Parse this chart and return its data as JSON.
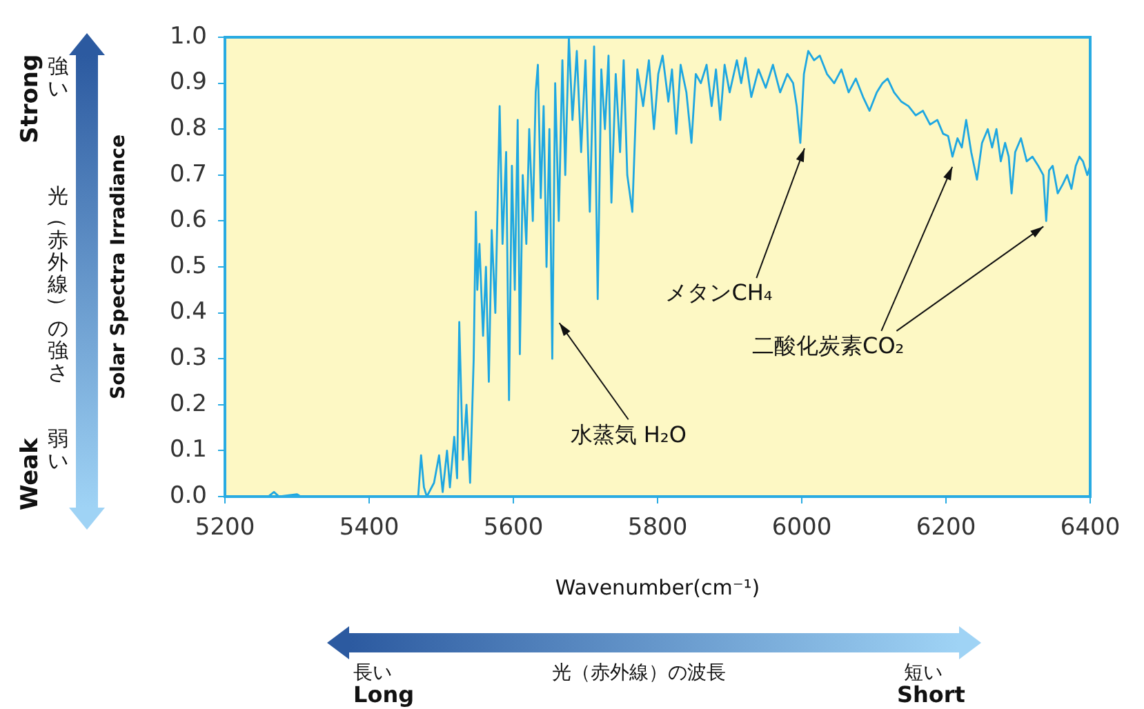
{
  "chart_data": {
    "type": "line",
    "xlabel": "Wavenumber(cm⁻¹)",
    "ylabel": "Solar Spectra Irradiance",
    "xlim": [
      5200,
      6400
    ],
    "ylim": [
      0,
      1.0
    ],
    "xticks": [
      5200,
      5400,
      5600,
      5800,
      6000,
      6200,
      6400
    ],
    "yticks": [
      {
        "value": 0,
        "label": "0.0"
      },
      {
        "value": 0.1,
        "label": "0.1"
      },
      {
        "value": 0.2,
        "label": "0.2"
      },
      {
        "value": 0.3,
        "label": "0.3"
      },
      {
        "value": 0.4,
        "label": "0.4"
      },
      {
        "value": 0.5,
        "label": "0.5"
      },
      {
        "value": 0.6,
        "label": "0.6"
      },
      {
        "value": 0.7,
        "label": "0.7"
      },
      {
        "value": 0.8,
        "label": "0.8"
      },
      {
        "value": 0.9,
        "label": "0.9"
      },
      {
        "value": 1.0,
        "label": "1.0"
      }
    ],
    "legend": false,
    "marker": "none",
    "line_style": "solid",
    "series": [
      {
        "color": "#1ea7e1",
        "x": [
          5200,
          5260,
          5268,
          5275,
          5300,
          5305,
          5320,
          5400,
          5468,
          5472,
          5476,
          5480,
          5490,
          5497,
          5502,
          5508,
          5512,
          5518,
          5522,
          5525,
          5530,
          5535,
          5540,
          5545,
          5548,
          5550,
          5553,
          5558,
          5562,
          5566,
          5570,
          5575,
          5581,
          5585,
          5590,
          5594,
          5598,
          5602,
          5606,
          5609,
          5613,
          5618,
          5622,
          5627,
          5631,
          5634,
          5638,
          5642,
          5646,
          5650,
          5654,
          5658,
          5663,
          5668,
          5672,
          5677,
          5682,
          5688,
          5694,
          5700,
          5706,
          5712,
          5717,
          5722,
          5727,
          5732,
          5736,
          5742,
          5748,
          5753,
          5758,
          5765,
          5772,
          5780,
          5788,
          5795,
          5801,
          5807,
          5815,
          5820,
          5826,
          5832,
          5840,
          5847,
          5853,
          5860,
          5868,
          5875,
          5881,
          5887,
          5893,
          5900,
          5910,
          5916,
          5922,
          5930,
          5940,
          5950,
          5960,
          5970,
          5980,
          5988,
          5993,
          5998,
          6003,
          6009,
          6017,
          6025,
          6035,
          6045,
          6055,
          6065,
          6075,
          6085,
          6094,
          6104,
          6112,
          6119,
          6128,
          6138,
          6148,
          6158,
          6168,
          6178,
          6188,
          6196,
          6203,
          6209,
          6216,
          6222,
          6228,
          6235,
          6243,
          6250,
          6258,
          6264,
          6270,
          6276,
          6282,
          6287,
          6291,
          6296,
          6304,
          6312,
          6320,
          6328,
          6335,
          6339,
          6343,
          6348,
          6355,
          6362,
          6368,
          6374,
          6380,
          6385,
          6390,
          6396,
          6400
        ],
        "values": [
          0,
          0,
          0.01,
          0,
          0.005,
          0,
          0,
          0,
          0,
          0.09,
          0.02,
          0,
          0.03,
          0.09,
          0.01,
          0.1,
          0.02,
          0.13,
          0.04,
          0.38,
          0.08,
          0.2,
          0.03,
          0.3,
          0.62,
          0.45,
          0.55,
          0.35,
          0.5,
          0.25,
          0.58,
          0.4,
          0.85,
          0.55,
          0.75,
          0.21,
          0.72,
          0.45,
          0.82,
          0.31,
          0.7,
          0.55,
          0.8,
          0.6,
          0.88,
          0.94,
          0.65,
          0.85,
          0.5,
          0.8,
          0.3,
          0.9,
          0.6,
          0.95,
          0.7,
          1.0,
          0.82,
          0.97,
          0.75,
          0.95,
          0.62,
          0.98,
          0.43,
          0.93,
          0.8,
          0.96,
          0.64,
          0.92,
          0.75,
          0.95,
          0.7,
          0.62,
          0.93,
          0.85,
          0.95,
          0.8,
          0.92,
          0.96,
          0.86,
          0.93,
          0.79,
          0.94,
          0.88,
          0.77,
          0.92,
          0.9,
          0.94,
          0.85,
          0.93,
          0.82,
          0.94,
          0.88,
          0.95,
          0.9,
          0.955,
          0.87,
          0.93,
          0.89,
          0.94,
          0.88,
          0.92,
          0.9,
          0.85,
          0.77,
          0.92,
          0.97,
          0.95,
          0.96,
          0.92,
          0.9,
          0.93,
          0.88,
          0.91,
          0.87,
          0.84,
          0.88,
          0.9,
          0.91,
          0.88,
          0.86,
          0.85,
          0.83,
          0.84,
          0.81,
          0.82,
          0.79,
          0.785,
          0.74,
          0.78,
          0.76,
          0.82,
          0.75,
          0.69,
          0.77,
          0.8,
          0.76,
          0.8,
          0.73,
          0.77,
          0.74,
          0.66,
          0.75,
          0.78,
          0.73,
          0.74,
          0.72,
          0.7,
          0.6,
          0.71,
          0.72,
          0.66,
          0.68,
          0.7,
          0.67,
          0.72,
          0.74,
          0.73,
          0.7,
          0.72
        ]
      }
    ],
    "annotations": [
      {
        "text": "水蒸気 H₂O",
        "x": 5660,
        "y": 0.39
      },
      {
        "text": "メタンCH₄",
        "x": 6000,
        "y": 0.77
      },
      {
        "text": "二酸化炭素CO₂",
        "x": 6205,
        "y": 0.73
      },
      "強い",
      "Strong",
      "光（赤外線）の強さ",
      "弱い",
      "Weak",
      "長い",
      "Long",
      "光（赤外線）の波長",
      "短い",
      "Short"
    ]
  }
}
